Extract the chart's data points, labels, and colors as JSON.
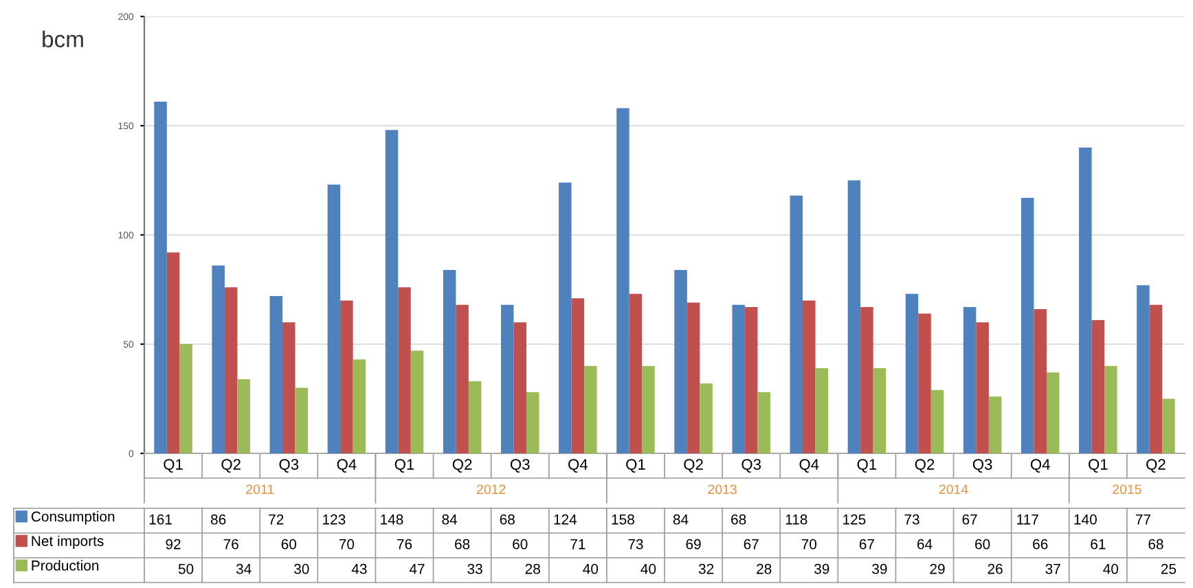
{
  "chart_data": {
    "type": "bar",
    "ylabel": "bcm",
    "categories": [
      "Q1",
      "Q2",
      "Q3",
      "Q4",
      "Q1",
      "Q2",
      "Q3",
      "Q4",
      "Q1",
      "Q2",
      "Q3",
      "Q4",
      "Q1",
      "Q2",
      "Q3",
      "Q4",
      "Q1",
      "Q2"
    ],
    "annotations": [
      "2011",
      "2012",
      "2013",
      "2014",
      "2015"
    ],
    "series": [
      {
        "name": "Consumption",
        "color": "#4f81bd",
        "values": [
          161,
          86,
          72,
          123,
          148,
          84,
          68,
          124,
          158,
          84,
          68,
          118,
          125,
          73,
          67,
          117,
          140,
          77
        ]
      },
      {
        "name": "Net imports",
        "color": "#c0504d",
        "values": [
          92,
          76,
          60,
          70,
          76,
          68,
          60,
          71,
          73,
          69,
          67,
          70,
          67,
          64,
          60,
          66,
          61,
          68
        ]
      },
      {
        "name": "Production",
        "color": "#9bbb59",
        "values": [
          50,
          34,
          30,
          43,
          47,
          33,
          28,
          40,
          40,
          32,
          28,
          39,
          39,
          29,
          26,
          37,
          40,
          25
        ]
      }
    ],
    "ylim": [
      0,
      200
    ],
    "yticks": [
      0,
      50,
      100,
      150,
      200
    ],
    "grid": "y",
    "data_labels": true,
    "legend": "bottom left"
  }
}
